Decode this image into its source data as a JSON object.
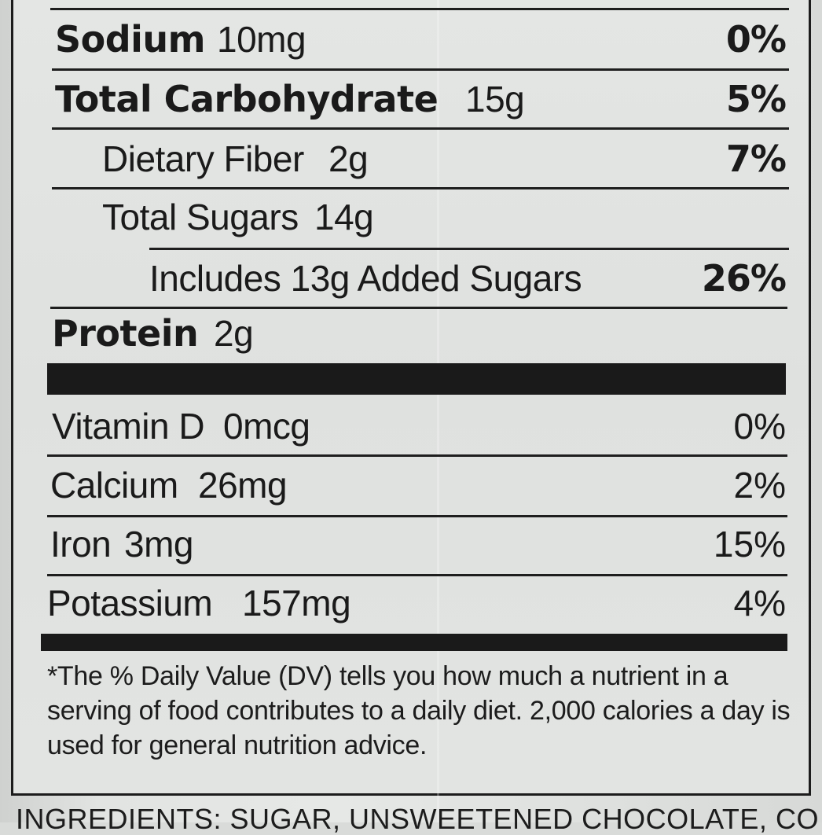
{
  "rows": [
    {
      "name": "Sodium",
      "amount": "10mg",
      "dv": "0%",
      "bold_name": true,
      "bold_dv": true
    },
    {
      "name": "Total Carbohydrate",
      "amount": "15g",
      "dv": "5%",
      "bold_name": true,
      "bold_dv": true
    },
    {
      "name": "Dietary Fiber",
      "amount": "2g",
      "dv": "7%",
      "bold_name": false,
      "bold_dv": true
    },
    {
      "name": "Total Sugars",
      "amount": "14g",
      "dv": "",
      "bold_name": false,
      "bold_dv": false
    },
    {
      "name": "Includes 13g Added Sugars",
      "amount": "",
      "dv": "26%",
      "bold_name": false,
      "bold_dv": true
    },
    {
      "name": "Protein",
      "amount": "2g",
      "dv": "",
      "bold_name": true,
      "bold_dv": false
    }
  ],
  "minerals": [
    {
      "name": "Vitamin D",
      "amount": "0mcg",
      "dv": "0%"
    },
    {
      "name": "Calcium",
      "amount": "26mg",
      "dv": "2%"
    },
    {
      "name": "Iron",
      "amount": "3mg",
      "dv": "15%"
    },
    {
      "name": "Potassium",
      "amount": "157mg",
      "dv": "4%"
    }
  ],
  "footnote": "*The % Daily Value (DV) tells you how much a nutrient in a serving of food contributes to a daily diet. 2,000 calories a day is used for general nutrition advice.",
  "ingredients": "INGREDIENTS: SUGAR, UNSWEETENED CHOCOLATE, COCOA BUTTER"
}
